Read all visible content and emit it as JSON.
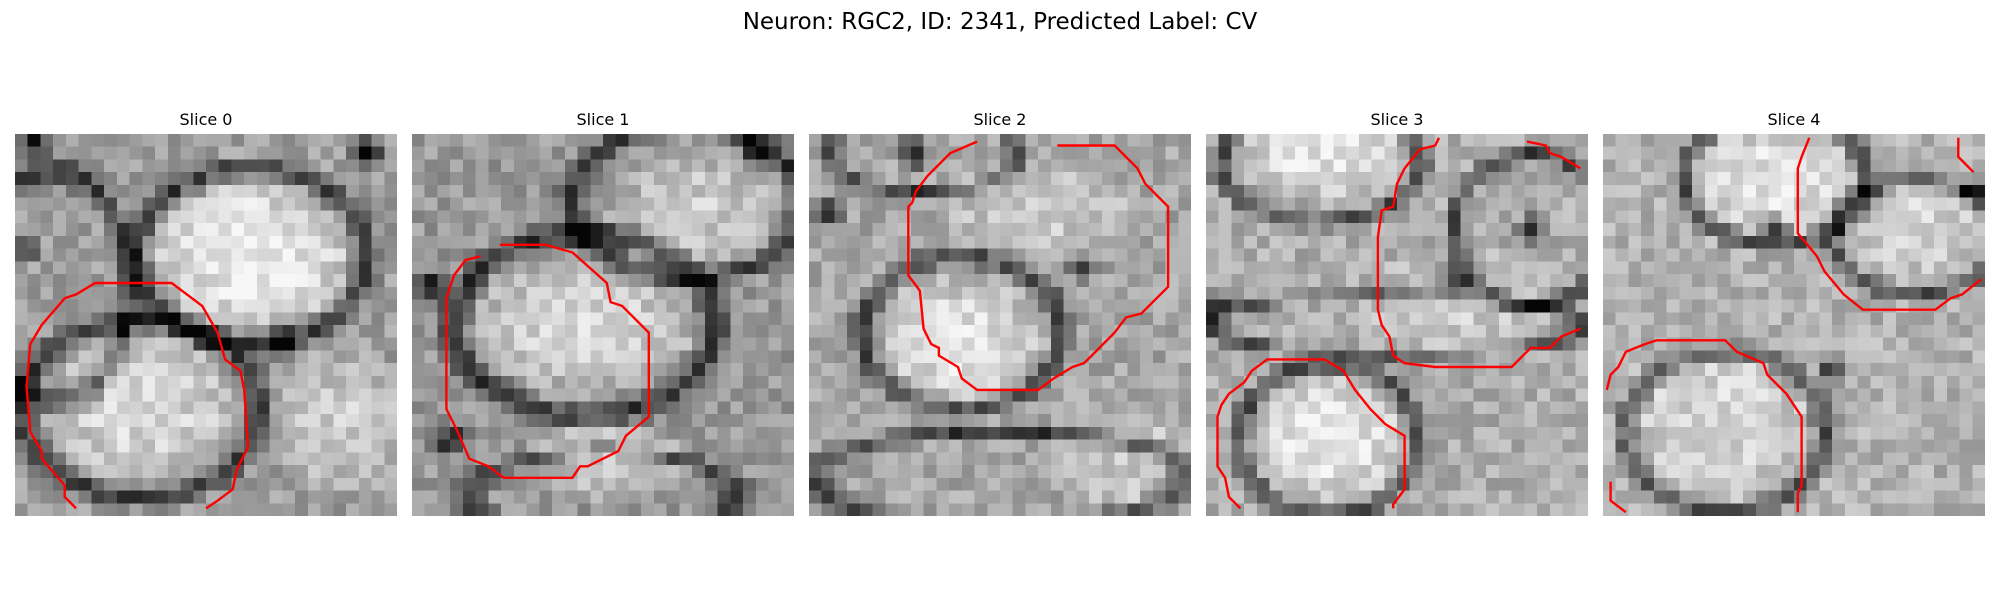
{
  "title": "Neuron: RGC2, ID: 2341, Predicted Label: CV",
  "contour_color": "#ff0000",
  "slices": [
    {
      "label": "Slice 0"
    },
    {
      "label": "Slice 1"
    },
    {
      "label": "Slice 2"
    },
    {
      "label": "Slice 3"
    },
    {
      "label": "Slice 4"
    }
  ]
}
